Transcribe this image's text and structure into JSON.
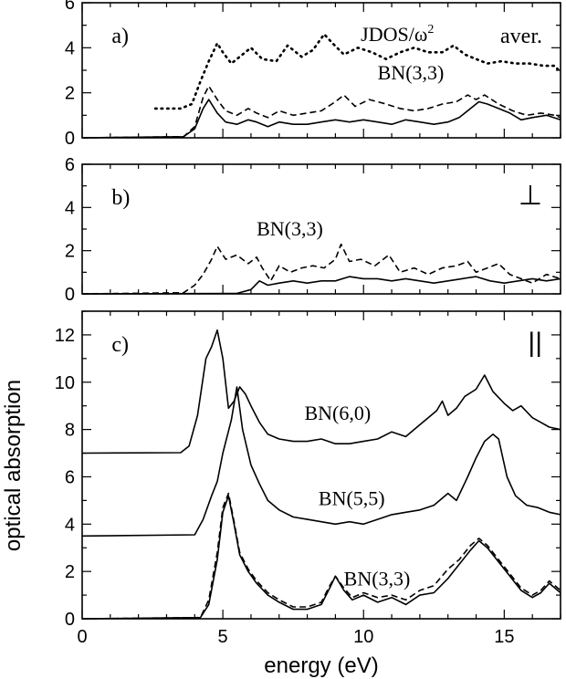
{
  "chart_data": {
    "type": "line",
    "xlabel": "energy (eV)",
    "ylabel": "optical absorption",
    "xlim": [
      0,
      17
    ],
    "xticks": [
      0,
      5,
      10,
      15
    ],
    "panels": [
      {
        "id": "a",
        "label": "a)",
        "corner": "aver.",
        "ylim": [
          0,
          6
        ],
        "yticks": [
          0,
          2,
          4,
          6
        ],
        "annotations": [
          {
            "text": "JDOS/ω",
            "sup": "2",
            "x": 9.9,
            "y": 4.3
          },
          {
            "text": "BN(3,3)",
            "x": 10.5,
            "y": 2.6
          }
        ],
        "series": [
          {
            "style": "dotted",
            "x": [
              2.6,
              3.5,
              3.9,
              4.2,
              4.5,
              4.8,
              5.0,
              5.3,
              5.7,
              6.0,
              6.4,
              6.9,
              7.3,
              7.8,
              8.2,
              8.6,
              8.9,
              9.3,
              9.8,
              10.3,
              10.8,
              11.3,
              11.8,
              12.3,
              12.8,
              13.2,
              13.6,
              14.0,
              14.4,
              14.9,
              15.4,
              15.9,
              16.4,
              16.8,
              17.0
            ],
            "y": [
              1.3,
              1.3,
              1.5,
              2.5,
              3.4,
              4.2,
              3.8,
              3.3,
              3.7,
              4.0,
              3.5,
              3.4,
              4.1,
              3.6,
              3.9,
              4.6,
              4.2,
              3.7,
              4.0,
              3.8,
              3.5,
              3.8,
              4.0,
              3.8,
              3.8,
              4.1,
              3.7,
              3.5,
              3.3,
              3.4,
              3.3,
              3.3,
              3.2,
              3.2,
              2.9
            ]
          },
          {
            "style": "dashed",
            "x": [
              0,
              3.6,
              4.0,
              4.3,
              4.5,
              4.8,
              5.1,
              5.5,
              5.9,
              6.2,
              6.6,
              7.0,
              7.5,
              8.0,
              8.5,
              9.0,
              9.3,
              9.7,
              10.2,
              10.8,
              11.3,
              11.8,
              12.3,
              12.8,
              13.3,
              13.7,
              14.0,
              14.3,
              14.8,
              15.3,
              15.8,
              16.3,
              16.8,
              17.0
            ],
            "y": [
              0,
              0.05,
              0.5,
              1.8,
              2.3,
              1.7,
              1.2,
              1.0,
              1.3,
              1.1,
              0.9,
              1.2,
              1.0,
              1.1,
              1.2,
              1.6,
              1.9,
              1.4,
              1.7,
              1.5,
              1.3,
              1.2,
              1.3,
              1.5,
              1.6,
              1.9,
              1.7,
              1.9,
              1.5,
              1.2,
              1.0,
              1.1,
              1.0,
              0.9
            ]
          },
          {
            "style": "solid",
            "x": [
              0,
              3.6,
              4.0,
              4.3,
              4.5,
              4.8,
              5.1,
              5.5,
              5.9,
              6.2,
              6.6,
              7.0,
              7.5,
              8.0,
              8.5,
              9.0,
              9.5,
              10.0,
              10.5,
              11.0,
              11.5,
              12.0,
              12.5,
              13.0,
              13.4,
              13.8,
              14.1,
              14.4,
              14.8,
              15.2,
              15.6,
              16.0,
              16.5,
              17.0
            ],
            "y": [
              0,
              0.05,
              0.4,
              1.3,
              1.7,
              1.1,
              0.7,
              0.6,
              0.8,
              0.7,
              0.5,
              0.7,
              0.6,
              0.6,
              0.7,
              0.8,
              0.7,
              0.8,
              0.7,
              0.6,
              0.8,
              0.7,
              0.6,
              0.7,
              0.9,
              1.3,
              1.6,
              1.5,
              1.3,
              1.1,
              0.8,
              0.9,
              1.0,
              0.8
            ]
          }
        ]
      },
      {
        "id": "b",
        "label": "b)",
        "corner": "⊥",
        "ylim": [
          0,
          6
        ],
        "yticks": [
          0,
          2,
          4,
          6
        ],
        "annotations": [
          {
            "text": "BN(3,3)",
            "x": 6.2,
            "y": 2.7
          }
        ],
        "series": [
          {
            "style": "dashed",
            "x": [
              0,
              3.6,
              4.0,
              4.3,
              4.6,
              4.8,
              5.1,
              5.5,
              5.9,
              6.2,
              6.4,
              6.7,
              7.0,
              7.4,
              7.8,
              8.2,
              8.6,
              9.0,
              9.2,
              9.5,
              9.9,
              10.4,
              10.9,
              11.3,
              11.8,
              12.3,
              12.8,
              13.3,
              13.7,
              14.0,
              14.4,
              14.8,
              15.2,
              15.6,
              16.0,
              16.5,
              17.0
            ],
            "y": [
              0,
              0.05,
              0.4,
              0.9,
              1.6,
              2.2,
              1.6,
              1.8,
              1.4,
              1.7,
              1.2,
              0.6,
              1.3,
              1.0,
              1.2,
              1.3,
              1.2,
              1.6,
              2.3,
              1.5,
              1.6,
              1.3,
              1.8,
              1.0,
              1.2,
              0.9,
              1.2,
              1.3,
              1.5,
              1.0,
              1.2,
              1.4,
              0.9,
              0.7,
              0.5,
              0.9,
              0.7
            ]
          },
          {
            "style": "solid",
            "x": [
              0,
              5.5,
              6.0,
              6.3,
              6.6,
              7.0,
              7.5,
              8.0,
              8.5,
              9.0,
              9.5,
              10.0,
              10.5,
              11.0,
              11.5,
              12.0,
              12.5,
              13.0,
              13.5,
              14.0,
              14.5,
              15.0,
              15.5,
              16.0,
              16.5,
              17.0
            ],
            "y": [
              0,
              0.02,
              0.2,
              0.6,
              0.4,
              0.5,
              0.6,
              0.5,
              0.6,
              0.6,
              0.8,
              0.7,
              0.7,
              0.6,
              0.7,
              0.6,
              0.5,
              0.6,
              0.7,
              0.8,
              0.6,
              0.5,
              0.6,
              0.7,
              0.6,
              0.7
            ]
          }
        ]
      },
      {
        "id": "c",
        "label": "c)",
        "corner": "||",
        "ylim": [
          0,
          13
        ],
        "yticks": [
          0,
          2,
          4,
          6,
          8,
          10,
          12
        ],
        "annotations": [
          {
            "text": "BN(6,0)",
            "x": 7.9,
            "y": 8.4
          },
          {
            "text": "BN(5,5)",
            "x": 8.4,
            "y": 4.8
          },
          {
            "text": "BN(3,3)",
            "x": 9.3,
            "y": 1.4
          }
        ],
        "series": [
          {
            "name_ref": "BN(6,0)",
            "style": "solid",
            "x": [
              0,
              3.5,
              3.8,
              4.1,
              4.4,
              4.6,
              4.8,
              5.0,
              5.2,
              5.4,
              5.6,
              5.8,
              6.0,
              6.3,
              6.6,
              7.0,
              7.5,
              8.0,
              8.5,
              9.0,
              9.5,
              10.0,
              10.5,
              11.0,
              11.5,
              12.0,
              12.3,
              12.6,
              12.8,
              13.0,
              13.3,
              13.6,
              14.0,
              14.3,
              14.6,
              15.0,
              15.3,
              15.6,
              16.0,
              16.3,
              16.6,
              17.0
            ],
            "y": [
              7.0,
              7.02,
              7.3,
              8.6,
              11.0,
              11.5,
              12.2,
              11.0,
              8.9,
              9.2,
              9.8,
              9.5,
              9.0,
              8.3,
              7.8,
              7.6,
              7.5,
              7.5,
              7.6,
              7.4,
              7.4,
              7.5,
              7.6,
              7.9,
              7.7,
              8.2,
              8.5,
              8.8,
              9.2,
              8.6,
              8.9,
              9.4,
              9.7,
              10.3,
              9.6,
              9.1,
              8.8,
              9.0,
              8.5,
              8.3,
              8.1,
              8.0
            ]
          },
          {
            "name_ref": "BN(5,5)",
            "style": "solid",
            "x": [
              0,
              4.0,
              4.3,
              4.6,
              4.8,
              5.0,
              5.3,
              5.5,
              5.7,
              6.0,
              6.3,
              6.6,
              7.0,
              7.5,
              8.0,
              8.5,
              9.0,
              9.5,
              10.0,
              10.5,
              11.0,
              11.5,
              12.0,
              12.5,
              13.0,
              13.3,
              13.7,
              14.0,
              14.3,
              14.6,
              14.8,
              15.1,
              15.4,
              15.8,
              16.2,
              16.6,
              17.0
            ],
            "y": [
              3.5,
              3.55,
              4.2,
              5.2,
              5.8,
              7.0,
              8.4,
              9.8,
              8.0,
              6.5,
              5.7,
              5.0,
              4.6,
              4.3,
              4.2,
              4.1,
              4.0,
              4.1,
              4.0,
              4.2,
              4.4,
              4.5,
              4.6,
              4.8,
              5.3,
              5.0,
              6.0,
              6.8,
              7.5,
              7.8,
              7.6,
              6.0,
              5.2,
              4.8,
              4.7,
              4.5,
              4.4
            ]
          },
          {
            "name_ref": "BN(3,3)",
            "style": "solid",
            "x": [
              0,
              4.2,
              4.5,
              4.8,
              5.0,
              5.2,
              5.4,
              5.6,
              5.9,
              6.2,
              6.6,
              7.0,
              7.5,
              8.0,
              8.5,
              8.8,
              9.0,
              9.3,
              9.6,
              10.0,
              10.5,
              11.0,
              11.5,
              12.0,
              12.5,
              13.0,
              13.4,
              13.8,
              14.1,
              14.4,
              14.8,
              15.2,
              15.6,
              16.0,
              16.3,
              16.6,
              17.0
            ],
            "y": [
              0,
              0.05,
              0.6,
              2.5,
              4.5,
              5.2,
              4.0,
              2.7,
              2.0,
              1.5,
              1.0,
              0.7,
              0.4,
              0.4,
              0.6,
              1.3,
              1.8,
              1.2,
              0.8,
              1.0,
              0.7,
              0.9,
              0.6,
              1.0,
              1.1,
              1.7,
              2.3,
              2.9,
              3.3,
              3.0,
              2.4,
              1.8,
              1.2,
              0.9,
              1.1,
              1.5,
              1.1
            ]
          },
          {
            "name_ref": "BN(3,3) dashed",
            "style": "dashed",
            "x": [
              0,
              4.2,
              4.5,
              4.8,
              5.0,
              5.2,
              5.4,
              5.6,
              5.9,
              6.2,
              6.6,
              7.0,
              7.5,
              8.0,
              8.5,
              8.8,
              9.0,
              9.3,
              9.6,
              10.0,
              10.5,
              11.0,
              11.5,
              12.0,
              12.5,
              13.0,
              13.4,
              13.8,
              14.1,
              14.4,
              14.8,
              15.2,
              15.6,
              16.0,
              16.3,
              16.6,
              17.0
            ],
            "y": [
              0,
              0.05,
              0.8,
              2.8,
              4.7,
              5.3,
              4.1,
              2.8,
              2.1,
              1.6,
              1.1,
              0.8,
              0.5,
              0.5,
              0.7,
              1.4,
              1.8,
              1.3,
              0.9,
              1.1,
              0.9,
              1.0,
              0.8,
              1.2,
              1.4,
              2.1,
              2.5,
              3.1,
              3.4,
              3.1,
              2.5,
              1.9,
              1.3,
              1.0,
              1.2,
              1.6,
              1.2
            ]
          }
        ]
      }
    ]
  }
}
